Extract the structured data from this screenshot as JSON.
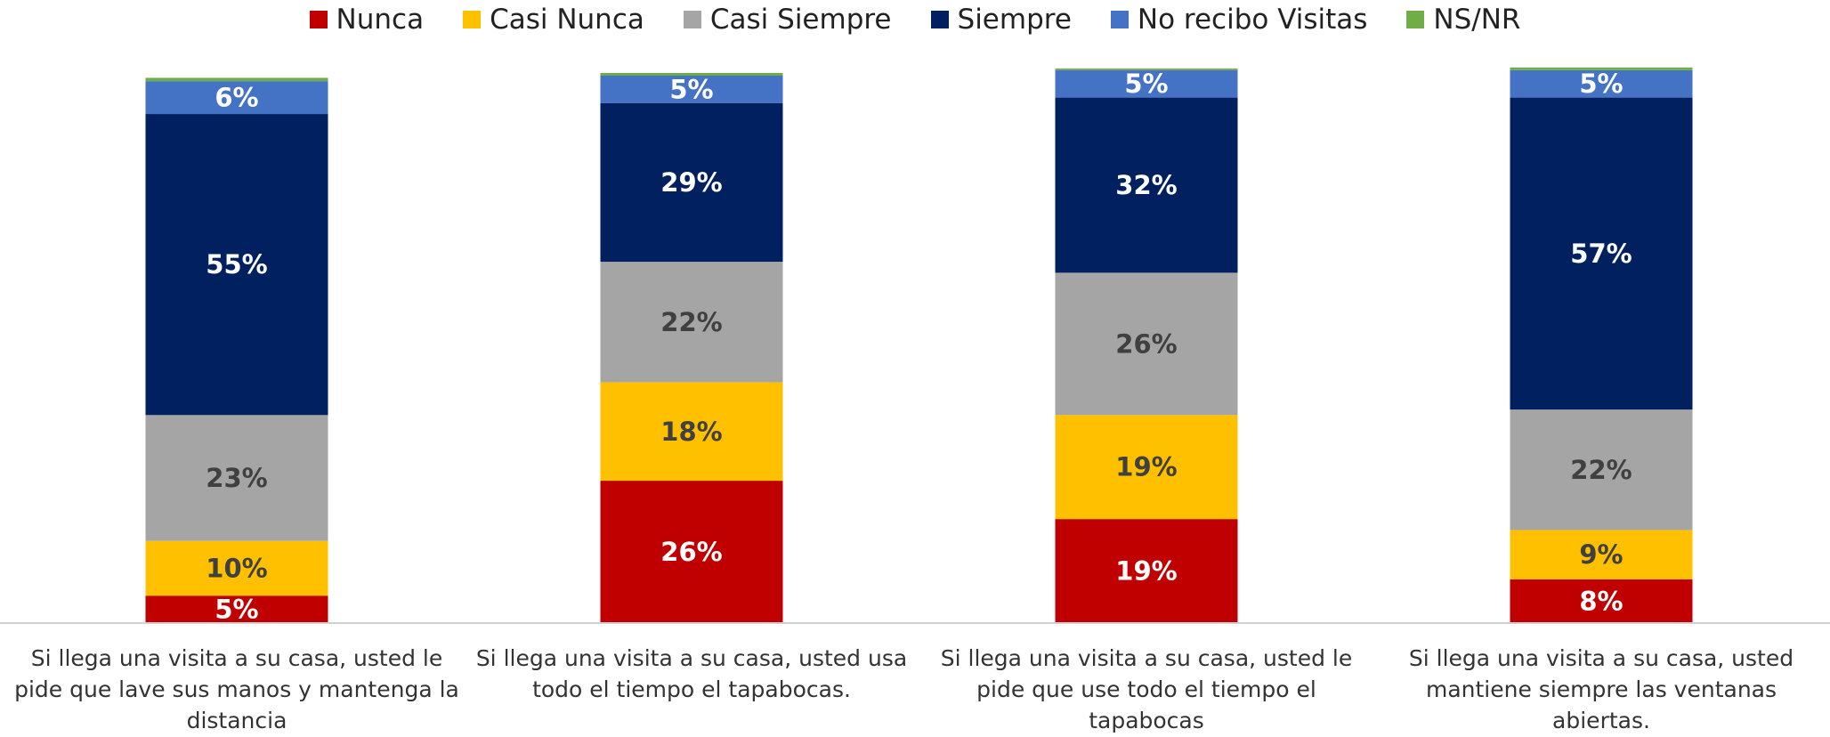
{
  "chart_data": {
    "type": "stacked_bar",
    "categories": [
      "Si llega una visita a su casa, usted le pide que lave sus manos y mantenga la distancia",
      "Si llega una visita a su casa, usted usa todo el tiempo el tapabocas.",
      "Si llega una visita a su casa, usted le pide que use todo el tiempo el tapabocas",
      "Si llega una visita a su casa, usted mantiene siempre las ventanas abiertas."
    ],
    "series": [
      {
        "name": "Nunca",
        "color": "#c00000",
        "values": [
          5,
          26,
          19,
          8
        ],
        "value_labels": [
          "5%",
          "26%",
          "19%",
          "8%"
        ]
      },
      {
        "name": "Casi Nunca",
        "color": "#ffc000",
        "values": [
          10,
          18,
          19,
          9
        ],
        "value_labels": [
          "10%",
          "18%",
          "19%",
          "9%"
        ]
      },
      {
        "name": "Casi Siempre",
        "color": "#a5a5a5",
        "values": [
          23,
          22,
          26,
          22
        ],
        "value_labels": [
          "23%",
          "22%",
          "26%",
          "22%"
        ]
      },
      {
        "name": "Siempre",
        "color": "#002060",
        "values": [
          55,
          29,
          32,
          57
        ],
        "value_labels": [
          "55%",
          "29%",
          "32%",
          "57%"
        ]
      },
      {
        "name": "No recibo Visitas",
        "color": "#4472c4",
        "values": [
          6,
          5,
          5,
          5
        ],
        "value_labels": [
          "6%",
          "5%",
          "5%",
          "5%"
        ]
      },
      {
        "name": "NS/NR",
        "color": "#70ad47",
        "values": [
          0.6,
          0.5,
          0.3,
          0.5
        ]
      }
    ],
    "ylim": [
      0,
      100
    ],
    "legend": "top"
  }
}
